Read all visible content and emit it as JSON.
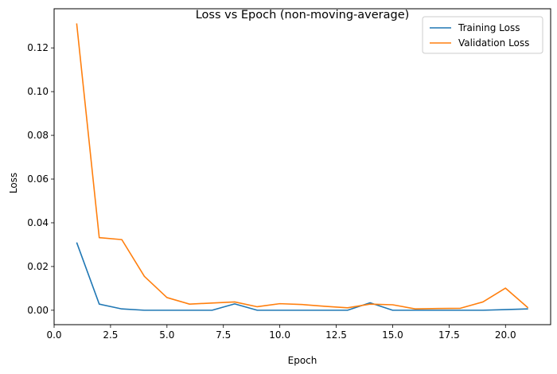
{
  "chart_data": {
    "type": "line",
    "title": "Loss vs Epoch (non-moving-average)",
    "xlabel": "Epoch",
    "ylabel": "Loss",
    "xlim": [
      0.0,
      22.0
    ],
    "ylim": [
      -0.0066,
      0.1379
    ],
    "xticks": [
      0.0,
      2.5,
      5.0,
      7.5,
      10.0,
      12.5,
      15.0,
      17.5,
      20.0
    ],
    "xtick_labels": [
      "0.0",
      "2.5",
      "5.0",
      "7.5",
      "10.0",
      "12.5",
      "15.0",
      "17.5",
      "20.0"
    ],
    "yticks": [
      0.0,
      0.02,
      0.04,
      0.06,
      0.08,
      0.1,
      0.12
    ],
    "ytick_labels": [
      "0.00",
      "0.02",
      "0.04",
      "0.06",
      "0.08",
      "0.10",
      "0.12"
    ],
    "grid": false,
    "legend_position": "top-right",
    "x": [
      1,
      2,
      3,
      4,
      5,
      6,
      7,
      8,
      9,
      10,
      11,
      12,
      13,
      14,
      15,
      16,
      17,
      18,
      19,
      20,
      21
    ],
    "series": [
      {
        "name": "Training Loss",
        "color": "#1f77b4",
        "values": [
          0.031,
          0.0028,
          0.0006,
          0.0,
          0.0,
          0.0,
          0.0,
          0.0029,
          0.0,
          0.0,
          0.0,
          0.0,
          0.0,
          0.0034,
          0.0,
          0.0,
          0.0,
          0.0,
          0.0,
          0.0003,
          0.0006
        ]
      },
      {
        "name": "Validation Loss",
        "color": "#ff7f0e",
        "values": [
          0.1312,
          0.0332,
          0.0323,
          0.0155,
          0.0058,
          0.0028,
          0.0033,
          0.0038,
          0.0016,
          0.003,
          0.0026,
          0.0018,
          0.0011,
          0.0028,
          0.0025,
          0.0006,
          0.0008,
          0.0009,
          0.0038,
          0.0101,
          0.0011
        ]
      }
    ]
  }
}
